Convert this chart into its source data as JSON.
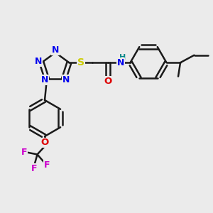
{
  "background_color": "#ebebeb",
  "bond_color": "#1a1a1a",
  "bond_width": 1.8,
  "atom_colors": {
    "N": "#0000ee",
    "S": "#cccc00",
    "O": "#dd0000",
    "H": "#008888",
    "F": "#cc00cc",
    "C": "#1a1a1a"
  },
  "font_size": 8.5
}
